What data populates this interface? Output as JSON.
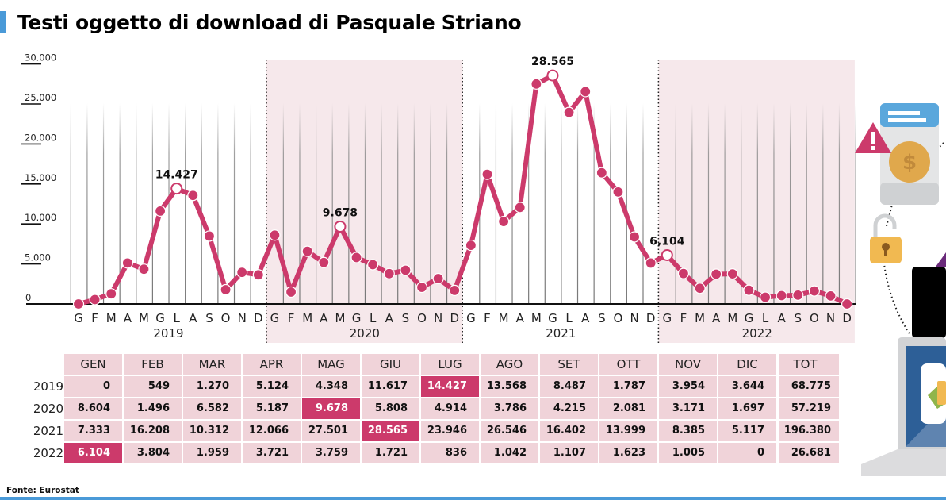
{
  "title": "Testi oggetto di download di Pasquale Striano",
  "source": "Fonte: Eurostat",
  "colors": {
    "accent": "#cc3a6b",
    "band": "#f6e8eb",
    "table_cell": "#f0d3d9",
    "title_bar": "#4a9ad8"
  },
  "chart_data": {
    "type": "line",
    "title": "Testi oggetto di download di Pasquale Striano",
    "xlabel": "",
    "ylabel": "",
    "ylim": [
      0,
      30000
    ],
    "yticks": [
      "0",
      "5.000",
      "10.000",
      "15.000",
      "20.000",
      "25.000",
      "30.000"
    ],
    "month_ticks": [
      "G",
      "F",
      "M",
      "A",
      "M",
      "G",
      "L",
      "A",
      "S",
      "O",
      "N",
      "D"
    ],
    "years": [
      "2019",
      "2020",
      "2021",
      "2022"
    ],
    "shaded_years": [
      "2020",
      "2022"
    ],
    "grid": "vertical lines per month",
    "series": [
      {
        "name": "Download",
        "values": [
          0,
          549,
          1270,
          5124,
          4348,
          11617,
          14427,
          13568,
          8487,
          1787,
          3954,
          3644,
          8604,
          1496,
          6582,
          5187,
          9678,
          5808,
          4914,
          3786,
          4215,
          2081,
          3171,
          1697,
          7333,
          16208,
          10312,
          12066,
          27501,
          28565,
          23946,
          26546,
          16402,
          13999,
          8385,
          5117,
          6104,
          3804,
          1959,
          3721,
          3759,
          1721,
          836,
          1042,
          1107,
          1623,
          1005,
          0
        ]
      }
    ],
    "annotations": [
      {
        "index": 6,
        "label": "14.427"
      },
      {
        "index": 16,
        "label": "9.678"
      },
      {
        "index": 29,
        "label": "28.565"
      },
      {
        "index": 36,
        "label": "6,104"
      }
    ]
  },
  "table": {
    "headers": [
      "GEN",
      "FEB",
      "MAR",
      "APR",
      "MAG",
      "GIU",
      "LUG",
      "AGO",
      "SET",
      "OTT",
      "NOV",
      "DIC",
      "TOT"
    ],
    "rows": [
      {
        "year": "2019",
        "cells": [
          "0",
          "549",
          "1.270",
          "5.124",
          "4.348",
          "11.617",
          "14.427",
          "13.568",
          "8.487",
          "1.787",
          "3.954",
          "3.644",
          "68.775"
        ],
        "highlight": 6
      },
      {
        "year": "2020",
        "cells": [
          "8.604",
          "1.496",
          "6.582",
          "5.187",
          "9.678",
          "5.808",
          "4.914",
          "3.786",
          "4.215",
          "2.081",
          "3.171",
          "1.697",
          "57.219"
        ],
        "highlight": 4
      },
      {
        "year": "2021",
        "cells": [
          "7.333",
          "16.208",
          "10.312",
          "12.066",
          "27.501",
          "28.565",
          "23.946",
          "26.546",
          "16.402",
          "13.999",
          "8.385",
          "5.117",
          "196.380"
        ],
        "highlight": 5
      },
      {
        "year": "2022",
        "cells": [
          "6.104",
          "3.804",
          "1.959",
          "3.721",
          "3.759",
          "1.721",
          "836",
          "1.042",
          "1.107",
          "1.623",
          "1.005",
          "0",
          "26.681"
        ],
        "highlight": 0
      }
    ]
  },
  "illustration": {
    "icons": [
      "warning-icon",
      "smartphone-icon",
      "dollar-coin-icon",
      "unlocked-padlock-icon",
      "laptop-icon"
    ]
  }
}
